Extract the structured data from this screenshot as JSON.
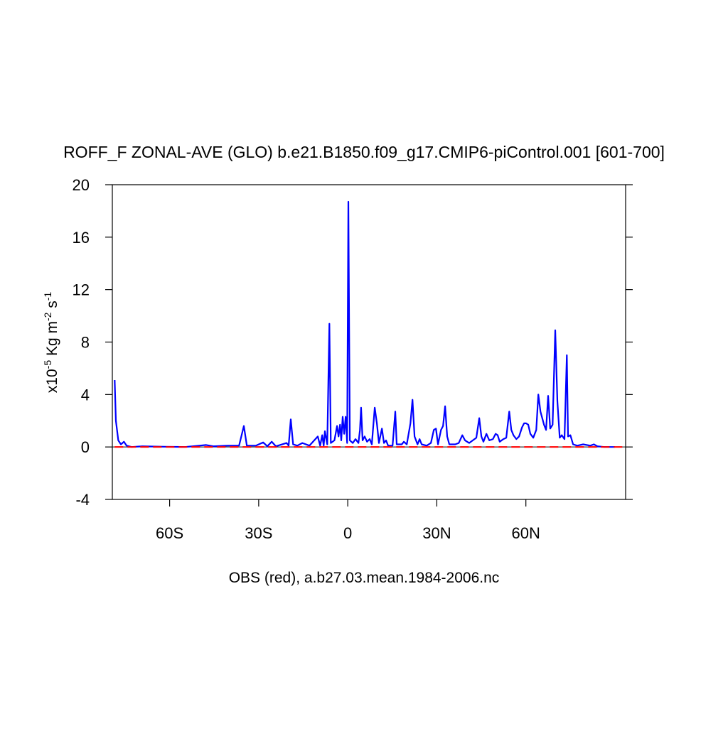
{
  "chart_data": {
    "type": "line",
    "title": "ROFF_F ZONAL-AVE (GLO) b.e21.B1850.f09_g17.CMIP6-piControl.001 [601-700]",
    "x_label": "OBS (red), a.b27.03.mean.1984-2006.nc",
    "y_label_parts": [
      "x10",
      "-5",
      " Kg m",
      "-2",
      " s",
      "-1"
    ],
    "xlim": [
      -79.3,
      93.6
    ],
    "xticks": [
      {
        "value": -60,
        "label": "60S"
      },
      {
        "value": -30,
        "label": "30S"
      },
      0,
      {
        "value": 30,
        "label": "30N"
      },
      {
        "value": 60,
        "label": "60N"
      }
    ],
    "ylim": [
      -4,
      20
    ],
    "yticks": [
      -4,
      0,
      4,
      8,
      12,
      16,
      20
    ],
    "series": [
      {
        "color": "#0000ff",
        "dashed": false,
        "x": [
          -78.5,
          -78.1,
          -77.3,
          -76.4,
          -75.4,
          -74.5,
          -72.8,
          -69.2,
          -62.0,
          -54.8,
          -50.0,
          -47.7,
          -45.3,
          -40.5,
          -36.6,
          -35.0,
          -34.0,
          -30.9,
          -28.5,
          -27.1,
          -25.6,
          -24.2,
          -20.6,
          -19.9,
          -19.2,
          -18.4,
          -17.0,
          -15.3,
          -12.9,
          -10.1,
          -9.3,
          -8.6,
          -8.1,
          -7.7,
          -6.9,
          -6.2,
          -5.7,
          -4.5,
          -3.6,
          -3.1,
          -2.6,
          -2.2,
          -1.7,
          -1.2,
          -0.7,
          -0.2,
          0.2,
          0.7,
          1.7,
          2.6,
          3.6,
          4.1,
          4.5,
          5.0,
          5.7,
          6.5,
          7.4,
          8.1,
          9.1,
          9.8,
          10.5,
          11.5,
          12.2,
          12.9,
          13.6,
          15.1,
          16.0,
          16.5,
          18.2,
          18.9,
          19.9,
          21.1,
          21.8,
          22.5,
          23.5,
          24.2,
          24.9,
          26.6,
          28.0,
          29.0,
          29.7,
          30.4,
          31.4,
          32.1,
          32.8,
          33.5,
          34.2,
          36.2,
          37.4,
          38.6,
          39.5,
          40.9,
          43.3,
          44.3,
          45.0,
          45.7,
          46.7,
          47.7,
          48.9,
          49.8,
          50.5,
          51.2,
          52.4,
          53.4,
          54.4,
          55.1,
          55.8,
          56.8,
          57.7,
          58.7,
          59.4,
          60.1,
          60.8,
          61.5,
          62.5,
          63.5,
          64.2,
          64.9,
          66.1,
          66.8,
          67.5,
          68.2,
          69.0,
          69.9,
          70.6,
          71.4,
          72.1,
          73.0,
          73.8,
          74.2,
          75.0,
          75.9,
          77.3,
          79.3,
          81.7,
          82.9,
          84.1,
          86.4,
          90.0
        ],
        "values": [
          5.1,
          2,
          0.5,
          0.2,
          0.4,
          0.1,
          0.0,
          0.05,
          0.02,
          0.0,
          0.1,
          0.15,
          0.05,
          0.1,
          0.1,
          1.6,
          0.1,
          0.1,
          0.35,
          0.05,
          0.4,
          0.05,
          0.3,
          0.1,
          2.1,
          0.2,
          0.1,
          0.3,
          0.1,
          0.8,
          0.1,
          0.9,
          0.1,
          1.2,
          0.2,
          9.4,
          0.3,
          0.5,
          1.6,
          0.8,
          1.7,
          0.5,
          2.3,
          1.0,
          2.3,
          0.3,
          18.7,
          0.5,
          0.3,
          0.6,
          0.3,
          1.3,
          3.0,
          0.5,
          0.8,
          0.4,
          0.6,
          0.2,
          3.0,
          1.8,
          0.3,
          1.4,
          0.3,
          0.5,
          0.1,
          0.1,
          2.7,
          0.2,
          0.2,
          0.4,
          0.2,
          1.8,
          3.6,
          0.8,
          0.2,
          0.6,
          0.2,
          0.1,
          0.3,
          1.3,
          1.4,
          0.2,
          1.3,
          1.6,
          3.1,
          0.8,
          0.2,
          0.2,
          0.3,
          0.9,
          0.5,
          0.3,
          0.7,
          2.2,
          0.8,
          0.4,
          1.0,
          0.5,
          0.6,
          1.0,
          0.9,
          0.4,
          0.6,
          0.7,
          2.7,
          1.3,
          0.9,
          0.6,
          0.8,
          1.5,
          1.8,
          1.8,
          1.7,
          1.0,
          0.7,
          1.3,
          4.0,
          2.7,
          1.7,
          1.3,
          3.9,
          1.4,
          1.7,
          8.9,
          3.5,
          0.7,
          0.9,
          0.6,
          7.0,
          0.8,
          0.9,
          0.2,
          0.1,
          0.2,
          0.1,
          0.2,
          0.05,
          0.0,
          0.0
        ]
      },
      {
        "color": "#ff0000",
        "dashed": true,
        "x": [
          -78.5,
          -60,
          -30,
          0,
          30,
          60,
          93.6
        ],
        "values": [
          0,
          0,
          0,
          0,
          0,
          0,
          0
        ]
      }
    ]
  }
}
